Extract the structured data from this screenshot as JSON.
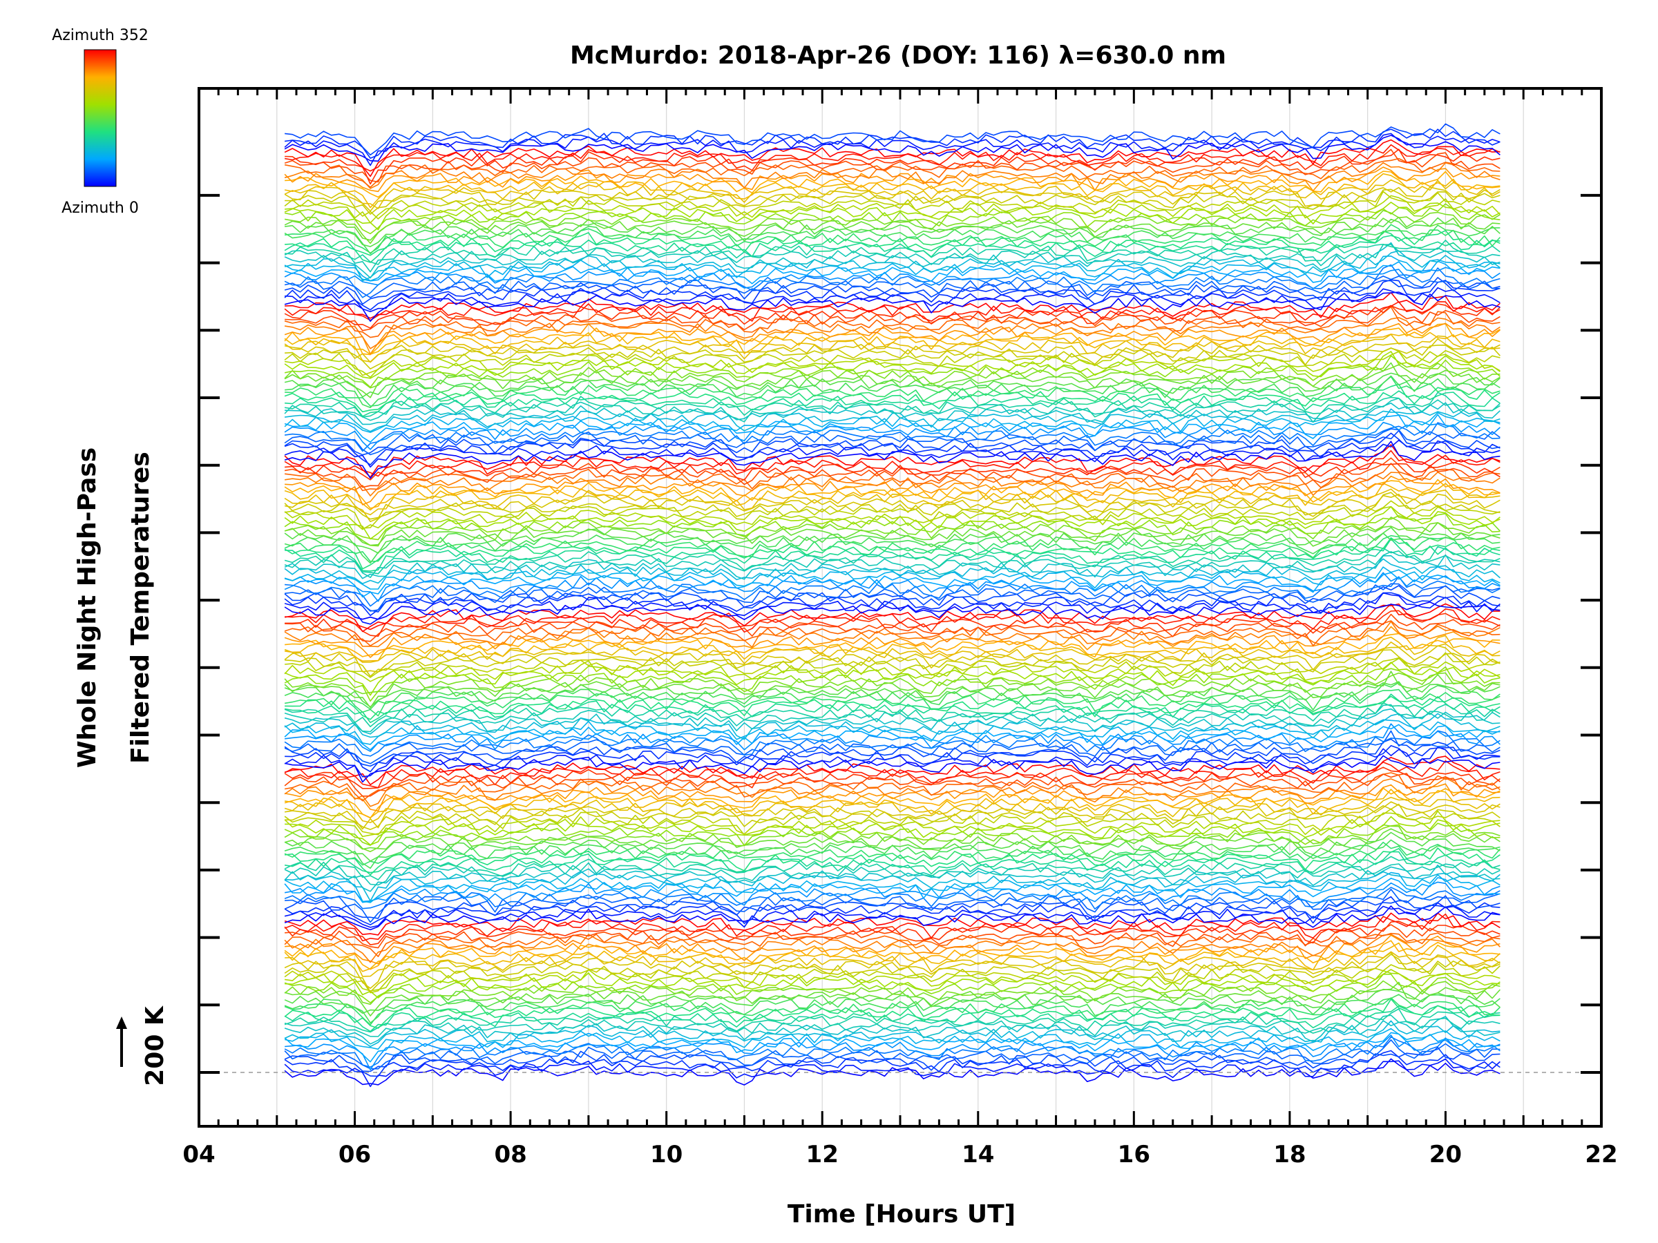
{
  "chart_data": {
    "type": "line",
    "title": "McMurdo: 2018-Apr-26 (DOY: 116) λ=630.0 nm",
    "xlabel": "Time [Hours UT]",
    "ylabel_line1": "Whole Night High-Pass",
    "ylabel_line2": "Filtered Temperatures",
    "scale_label": "200 K",
    "xlim": [
      4,
      22
    ],
    "x_ticks": [
      "04",
      "06",
      "08",
      "10",
      "12",
      "14",
      "16",
      "18",
      "20",
      "22"
    ],
    "time_range": [
      5.1,
      20.75
    ],
    "sample_interval_hours": 0.1,
    "n_traces": 220,
    "trace_spacing_rows": 1,
    "colorbar": {
      "top_label": "Azimuth 352",
      "bottom_label": "Azimuth 0",
      "azimuth_min": 0,
      "azimuth_max": 352,
      "colors": [
        "#0000ff",
        "#00a0ff",
        "#00d8a0",
        "#40e040",
        "#c8e000",
        "#ffc800",
        "#ff7000",
        "#ff0000"
      ]
    },
    "azimuth_cycle_length": 36,
    "grid": true
  }
}
